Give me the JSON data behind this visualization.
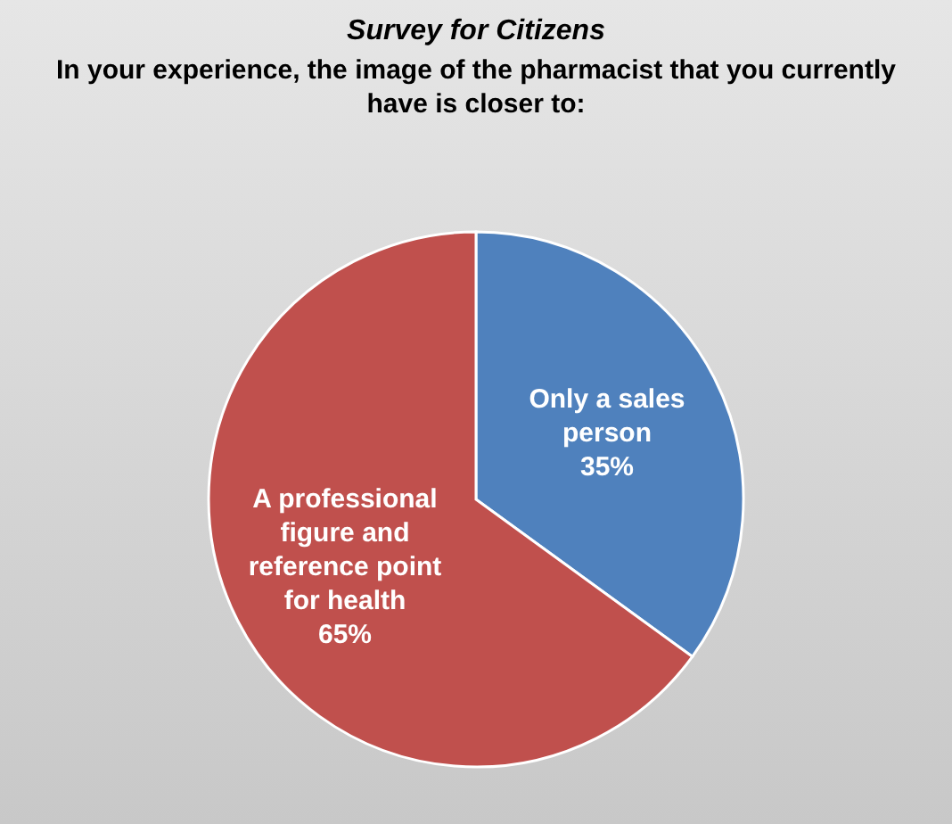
{
  "chart_data": {
    "type": "pie",
    "title": "Survey for Citizens",
    "subtitle": "In your experience, the image of the pharmacist that you currently have is closer to:",
    "categories": [
      "Only a sales person",
      "A professional figure and reference point for health"
    ],
    "values": [
      35,
      65
    ],
    "colors": [
      "#4f81bd",
      "#c0504d"
    ],
    "value_labels": [
      "35%",
      "65%"
    ]
  }
}
